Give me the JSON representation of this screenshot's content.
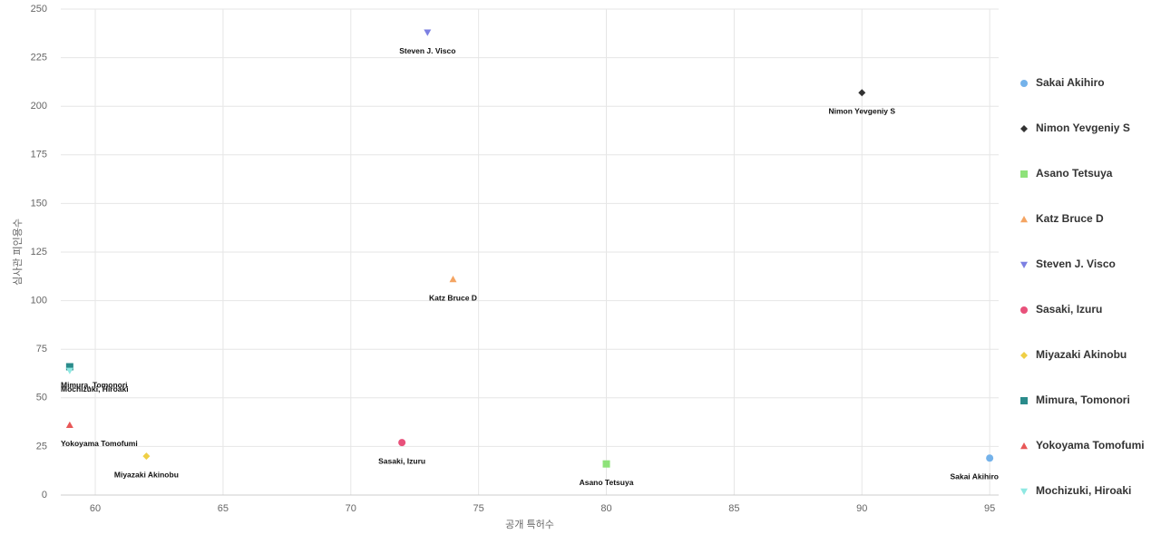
{
  "chart_data": {
    "type": "scatter",
    "x_label": "공개 특허수",
    "y_label": "심사관 피인용수",
    "xlim": [
      58.65,
      95.35
    ],
    "xticks": [
      60,
      65,
      70,
      75,
      80,
      85,
      90,
      95
    ],
    "ylim": [
      0,
      250
    ],
    "yticks": [
      0,
      25,
      50,
      75,
      100,
      125,
      150,
      175,
      200,
      225,
      250
    ],
    "grid": true,
    "legend": "right",
    "series": [
      {
        "name": "Sakai Akihiro",
        "color": "#74b2ea",
        "marker": "circle",
        "x": [
          95
        ],
        "values": [
          19
        ]
      },
      {
        "name": "Nimon Yevgeniy S",
        "color": "#333333",
        "marker": "diamond",
        "x": [
          90
        ],
        "values": [
          207
        ]
      },
      {
        "name": "Asano Tetsuya",
        "color": "#8ee27a",
        "marker": "square",
        "x": [
          80
        ],
        "values": [
          16
        ]
      },
      {
        "name": "Katz Bruce D",
        "color": "#f4a462",
        "marker": "triangle",
        "x": [
          74
        ],
        "values": [
          111
        ]
      },
      {
        "name": "Steven J. Visco",
        "color": "#7c80e2",
        "marker": "triangle-down",
        "x": [
          73
        ],
        "values": [
          238
        ]
      },
      {
        "name": "Sasaki, Izuru",
        "color": "#e8517b",
        "marker": "circle",
        "x": [
          72
        ],
        "values": [
          27
        ]
      },
      {
        "name": "Miyazaki Akinobu",
        "color": "#efcf45",
        "marker": "diamond",
        "x": [
          62
        ],
        "values": [
          20
        ]
      },
      {
        "name": "Mimura, Tomonori",
        "color": "#2a8b8b",
        "marker": "square",
        "x": [
          59
        ],
        "values": [
          66
        ]
      },
      {
        "name": "Yokoyama Tomofumi",
        "color": "#e85757",
        "marker": "triangle",
        "x": [
          59
        ],
        "values": [
          36
        ]
      },
      {
        "name": "Mochizuki, Hiroaki",
        "color": "#8fe8e2",
        "marker": "triangle-down",
        "x": [
          59
        ],
        "values": [
          64
        ]
      }
    ]
  }
}
